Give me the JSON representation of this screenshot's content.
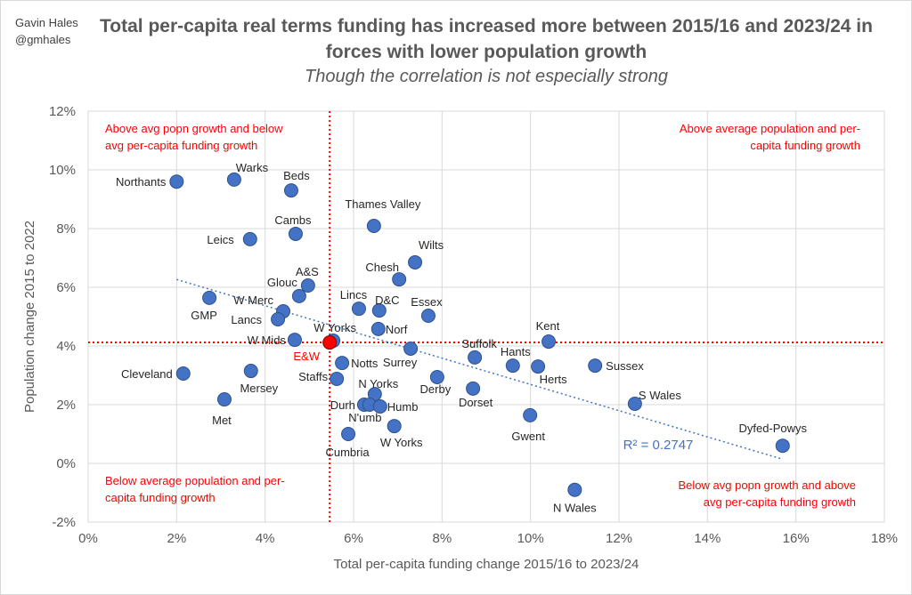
{
  "author": {
    "name": "Gavin Hales",
    "handle": "@gmhales"
  },
  "chart_data": {
    "type": "scatter",
    "title": "Total per-capita real terms funding has increased more between 2015/16 and 2023/24 in forces with lower population growth",
    "subtitle": "Though the correlation is not especially strong",
    "xlabel": "Total per-capita funding change 2015/16 to 2023/24",
    "ylabel": "Population change 2015 to 2022",
    "xlim": [
      0,
      18
    ],
    "ylim": [
      -2,
      12
    ],
    "xticks": [
      0,
      2,
      4,
      6,
      8,
      10,
      12,
      14,
      16,
      18
    ],
    "yticks": [
      -2,
      0,
      2,
      4,
      6,
      8,
      10,
      12
    ],
    "tick_suffix": "%",
    "grid": true,
    "point_color": "#4472c4",
    "reference_color": "#ff0000",
    "trend_color": "#4472c4",
    "points": [
      {
        "label": "Northants",
        "x": 2.0,
        "y": 9.6
      },
      {
        "label": "Warks",
        "x": 3.3,
        "y": 9.67
      },
      {
        "label": "Beds",
        "x": 4.59,
        "y": 9.3
      },
      {
        "label": "Thames Valley",
        "x": 6.46,
        "y": 8.09
      },
      {
        "label": "Cambs",
        "x": 4.69,
        "y": 7.82
      },
      {
        "label": "Leics",
        "x": 3.66,
        "y": 7.64
      },
      {
        "label": "Wilts",
        "x": 7.39,
        "y": 6.85
      },
      {
        "label": "Chesh",
        "x": 7.03,
        "y": 6.27
      },
      {
        "label": "A&S",
        "x": 4.97,
        "y": 6.06
      },
      {
        "label": "Glouc",
        "x": 4.77,
        "y": 5.7
      },
      {
        "label": "GMP",
        "x": 2.74,
        "y": 5.64
      },
      {
        "label": "Lincs",
        "x": 6.12,
        "y": 5.27
      },
      {
        "label": "D&C",
        "x": 6.58,
        "y": 5.21
      },
      {
        "label": "W Merc",
        "x": 4.41,
        "y": 5.18
      },
      {
        "label": "Essex",
        "x": 7.69,
        "y": 5.03
      },
      {
        "label": "Lancs",
        "x": 4.29,
        "y": 4.91
      },
      {
        "label": "Norf",
        "x": 6.56,
        "y": 4.58
      },
      {
        "label": "W Yorks",
        "x": 5.54,
        "y": 4.18
      },
      {
        "label": "W Mids",
        "x": 4.67,
        "y": 4.21
      },
      {
        "label": "Kent",
        "x": 10.41,
        "y": 4.15
      },
      {
        "label": "Surrey",
        "x": 7.29,
        "y": 3.91
      },
      {
        "label": "Suffolk",
        "x": 8.74,
        "y": 3.61
      },
      {
        "label": "Notts",
        "x": 5.74,
        "y": 3.42
      },
      {
        "label": "Hants",
        "x": 9.6,
        "y": 3.33
      },
      {
        "label": "Herts",
        "x": 10.17,
        "y": 3.3
      },
      {
        "label": "Sussex",
        "x": 11.46,
        "y": 3.33
      },
      {
        "label": "Mersey",
        "x": 3.68,
        "y": 3.15
      },
      {
        "label": "Cleveland",
        "x": 2.15,
        "y": 3.06
      },
      {
        "label": "Staffs",
        "x": 5.62,
        "y": 2.88
      },
      {
        "label": "Derby",
        "x": 7.89,
        "y": 2.94
      },
      {
        "label": "Dorset",
        "x": 8.7,
        "y": 2.55
      },
      {
        "label": "N Yorks",
        "x": 6.48,
        "y": 2.36
      },
      {
        "label": "S Wales",
        "x": 12.36,
        "y": 2.03
      },
      {
        "label": "Met",
        "x": 3.08,
        "y": 2.18
      },
      {
        "label": "Durh",
        "x": 6.24,
        "y": 2.0
      },
      {
        "label": "N'umb",
        "x": 6.36,
        "y": 2.0
      },
      {
        "label": "Humb",
        "x": 6.6,
        "y": 1.94
      },
      {
        "label": "Gwent",
        "x": 9.99,
        "y": 1.64
      },
      {
        "label": "W Yorks",
        "x": 6.92,
        "y": 1.27
      },
      {
        "label": "Cumbria",
        "x": 5.88,
        "y": 1.0
      },
      {
        "label": "Dyfed-Powys",
        "x": 15.7,
        "y": 0.6
      },
      {
        "label": "N Wales",
        "x": 11.0,
        "y": -0.9
      }
    ],
    "reference_point": {
      "label": "E&W",
      "x": 5.46,
      "y": 4.12
    },
    "trendline": {
      "type": "linear",
      "slope": -0.447,
      "intercept": 7.16,
      "x_range": [
        2.0,
        15.7
      ],
      "r2_label": "R² = 0.2747"
    },
    "annotations": {
      "top_left": [
        "Above avg popn growth and below",
        "avg per-capita funding growth"
      ],
      "top_right": [
        "Above average population and per-",
        "capita funding growth"
      ],
      "bottom_left": [
        "Below average population and per-",
        "capita funding growth"
      ],
      "bottom_right": [
        "Below avg popn growth and above",
        "avg per-capita funding growth"
      ]
    }
  }
}
